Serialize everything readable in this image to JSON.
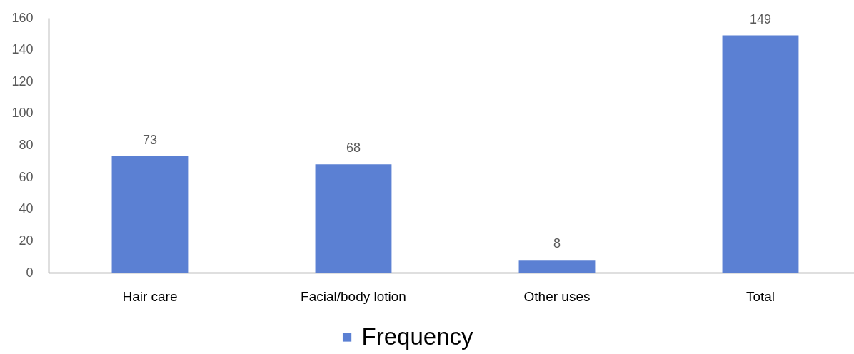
{
  "chart_data": {
    "type": "bar",
    "categories": [
      "Hair care",
      "Facial/body lotion",
      "Other uses",
      "Total"
    ],
    "series": [
      {
        "name": "Frequency",
        "color": "#5b80d3",
        "values": [
          73,
          68,
          8,
          149
        ]
      }
    ],
    "ylim": [
      0,
      160
    ],
    "yticks": [
      0,
      20,
      40,
      60,
      80,
      100,
      120,
      140,
      160
    ],
    "grid": false,
    "legend": "bottom",
    "data_labels": true
  }
}
